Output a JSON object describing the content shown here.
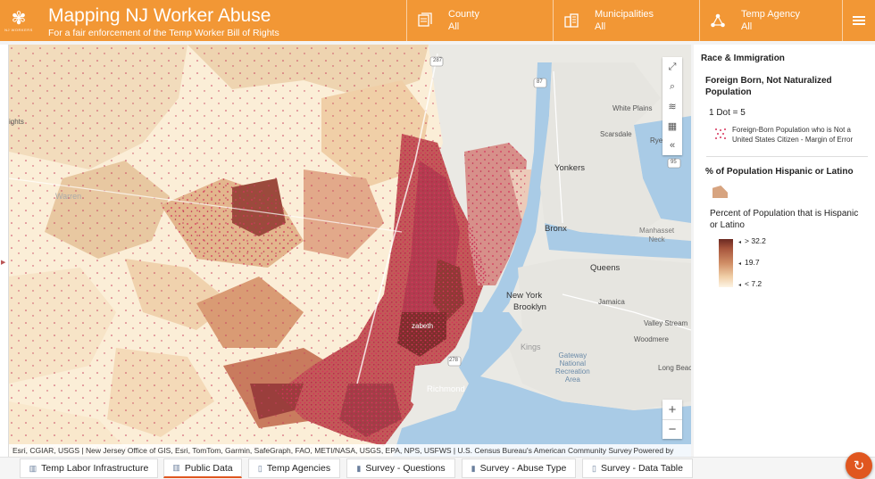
{
  "header": {
    "title": "Mapping NJ Worker Abuse",
    "subtitle": "For a fair enforcement of the Temp Worker Bill of Rights",
    "logo_text": "NJ WORKERS",
    "filters": [
      {
        "label": "County",
        "value": "All",
        "icon": "map-grid-icon"
      },
      {
        "label": "Municipalities",
        "value": "All",
        "icon": "city-icon"
      },
      {
        "label": "Temp Agency",
        "value": "All",
        "icon": "network-icon"
      }
    ],
    "menu_icon": "hamburger-icon"
  },
  "map": {
    "places": {
      "white_plains": "White Plains",
      "scarsdale": "Scarsdale",
      "rye": "Rye",
      "yonkers": "Yonkers",
      "bronx": "Bronx",
      "manhasset_neck": "Manhasset\nNeck",
      "queens": "Queens",
      "new_york": "New York",
      "brooklyn": "Brooklyn",
      "jamaica": "Jamaica",
      "valley_stream": "Valley Stream",
      "woodmere": "Woodmere",
      "kings": "Kings",
      "gateway": "Gateway\nNational\nRecreation\nArea",
      "long_beach": "Long Beach",
      "richmond": "Richmond",
      "rights": "ights",
      "warren": "Warren",
      "elizabeth": "zabeth"
    },
    "highway_shields": [
      "287",
      "87",
      "95",
      "278"
    ],
    "tools": [
      "expand-icon",
      "search-icon",
      "layers-icon",
      "qr-icon",
      "collapse-icon"
    ],
    "zoom_in": "+",
    "zoom_out": "−",
    "attribution": "Esri, CGIAR, USGS | New Jersey Office of GIS, Esri, TomTom, Garmin, SafeGraph, FAO, METI/NASA, USGS, EPA, NPS, USFWS | U.S. Census Bureau's American Community Survey (A...",
    "powered_by": "Powered by Esri"
  },
  "legend": {
    "heading": "Race & Immigration",
    "layer1_title": "Foreign Born, Not Naturalized Population",
    "dot_value": "1 Dot = 5",
    "dot_label": "Foreign-Born Population who is Not a United States Citizen - Margin of Error",
    "layer2_title": "% of Population Hispanic or Latino",
    "ramp_title": "Percent of Population that is Hispanic or Latino",
    "ramp_labels": {
      "high": "> 32.2",
      "mid": "19.7",
      "low": "< 7.2"
    },
    "colors": {
      "ramp_high": "#6b2a22",
      "ramp_low": "#fdf4e4",
      "dot": "#d6335b"
    }
  },
  "tabs": [
    {
      "label": "Temp Labor Infrastructure",
      "icon": "book-icon"
    },
    {
      "label": "Public Data",
      "icon": "book-icon",
      "active": true
    },
    {
      "label": "Temp Agencies",
      "icon": "document-icon"
    },
    {
      "label": "Survey - Questions",
      "icon": "chart-icon"
    },
    {
      "label": "Survey - Abuse Type",
      "icon": "chart-icon"
    },
    {
      "label": "Survey - Data Table",
      "icon": "document-icon"
    }
  ],
  "fab_icon": "refresh-icon",
  "colors": {
    "header": "#f29735",
    "accent": "#e0561f"
  }
}
